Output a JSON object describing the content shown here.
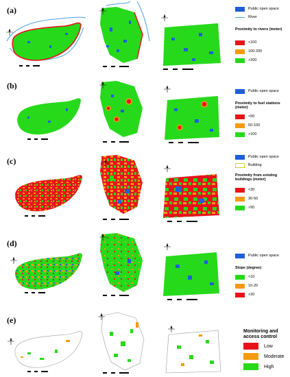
{
  "colors": {
    "green": "#27d91b",
    "orange": "#f49a12",
    "red": "#e8131a",
    "blue": "#1e5fd8",
    "river": "#4a9fe0",
    "building": "#f7f09a",
    "low_mc": "#e8131a",
    "moderate_mc": "#f49a12",
    "high_mc": "#27d91b"
  },
  "icons": [
    "north-arrow-icon",
    "scale-bar-icon"
  ],
  "panels": [
    {
      "label": "(a)",
      "legend": {
        "open_space": "Public open space",
        "river": "River",
        "title": "Proximity to rivers (meter)",
        "classes": [
          "<100",
          "100-200",
          ">200"
        ]
      }
    },
    {
      "label": "(b)",
      "legend": {
        "open_space": "Public open space",
        "title": "Proximity to fuel stations (meter)",
        "classes": [
          "<50",
          "50-100",
          ">100"
        ]
      }
    },
    {
      "label": "(c)",
      "legend": {
        "open_space": "Public open space",
        "building": "Building",
        "title": "Proximity from existing buildings (meter)",
        "classes": [
          "<30",
          "30-50",
          ">50"
        ]
      }
    },
    {
      "label": "(d)",
      "legend": {
        "open_space": "Public open space",
        "title": "Slope (degree)",
        "classes": [
          "<10",
          "10-20",
          ">20"
        ]
      }
    },
    {
      "label": "(e)",
      "legend": {
        "title": "Monitoring and access control",
        "classes": [
          "Low",
          "Moderate",
          "High"
        ]
      }
    }
  ]
}
